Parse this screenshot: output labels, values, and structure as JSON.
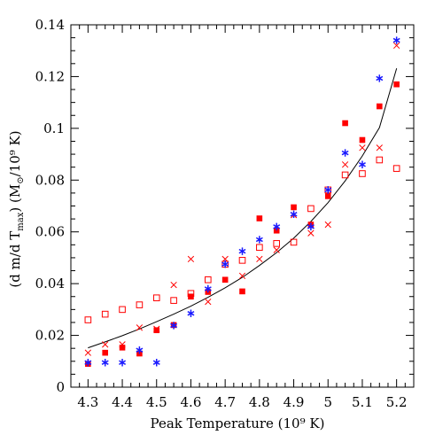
{
  "chart_data": {
    "type": "scatter",
    "xlabel": "Peak Temperature (10⁹ K)",
    "ylabel": {
      "prefix": "(d m/d T",
      "sub": "max",
      "mid": ") (M",
      "sub2": "⊙",
      "suffix": "/10⁹ K)"
    },
    "xlim": [
      4.25,
      5.25
    ],
    "ylim": [
      0,
      0.14
    ],
    "x_ticks": [
      4.3,
      4.4,
      4.5,
      4.6,
      4.7,
      4.8,
      4.9,
      5,
      5.1,
      5.2
    ],
    "x_tick_labels": [
      "4.3",
      "4.4",
      "4.5",
      "4.6",
      "4.7",
      "4.8",
      "4.9",
      "5",
      "5.1",
      "5.2"
    ],
    "y_ticks": [
      0,
      0.02,
      0.04,
      0.06,
      0.08,
      0.1,
      0.12,
      0.14
    ],
    "y_tick_labels": [
      "0",
      "0.02",
      "0.04",
      "0.06",
      "0.08",
      "0.1",
      "0.12",
      "0.14"
    ],
    "series": [
      {
        "marker": "filled-square",
        "color": "#ff0000",
        "points": [
          [
            4.3,
            0.009
          ],
          [
            4.35,
            0.0133
          ],
          [
            4.4,
            0.0153
          ],
          [
            4.45,
            0.013
          ],
          [
            4.5,
            0.022
          ],
          [
            4.55,
            0.024
          ],
          [
            4.6,
            0.035
          ],
          [
            4.65,
            0.0368
          ],
          [
            4.7,
            0.0415
          ],
          [
            4.75,
            0.037
          ],
          [
            4.8,
            0.0652
          ],
          [
            4.85,
            0.0605
          ],
          [
            4.9,
            0.0695
          ],
          [
            4.95,
            0.0628
          ],
          [
            5.0,
            0.0738
          ],
          [
            5.05,
            0.102
          ],
          [
            5.1,
            0.0955
          ],
          [
            5.15,
            0.1085
          ],
          [
            5.2,
            0.117
          ]
        ]
      },
      {
        "marker": "open-square",
        "color": "#ff0000",
        "points": [
          [
            4.3,
            0.026
          ],
          [
            4.35,
            0.0282
          ],
          [
            4.4,
            0.03
          ],
          [
            4.45,
            0.0318
          ],
          [
            4.5,
            0.0345
          ],
          [
            4.55,
            0.0335
          ],
          [
            4.6,
            0.0362
          ],
          [
            4.65,
            0.0415
          ],
          [
            4.7,
            0.0475
          ],
          [
            4.75,
            0.049
          ],
          [
            4.8,
            0.054
          ],
          [
            4.85,
            0.0555
          ],
          [
            4.9,
            0.056
          ],
          [
            4.95,
            0.069
          ],
          [
            5.0,
            0.0762
          ],
          [
            5.05,
            0.082
          ],
          [
            5.1,
            0.0825
          ],
          [
            5.15,
            0.0878
          ],
          [
            5.2,
            0.0845
          ]
        ]
      },
      {
        "marker": "cross",
        "color": "#ff0000",
        "points": [
          [
            4.3,
            0.0133
          ],
          [
            4.35,
            0.0165
          ],
          [
            4.4,
            0.0165
          ],
          [
            4.45,
            0.023
          ],
          [
            4.5,
            0.0225
          ],
          [
            4.55,
            0.0395
          ],
          [
            4.6,
            0.0495
          ],
          [
            4.65,
            0.033
          ],
          [
            4.7,
            0.0495
          ],
          [
            4.75,
            0.043
          ],
          [
            4.8,
            0.0495
          ],
          [
            4.85,
            0.053
          ],
          [
            4.9,
            0.0665
          ],
          [
            4.95,
            0.0595
          ],
          [
            5.0,
            0.0628
          ],
          [
            5.05,
            0.086
          ],
          [
            5.1,
            0.0925
          ],
          [
            5.15,
            0.0925
          ],
          [
            5.2,
            0.132
          ]
        ]
      },
      {
        "marker": "asterisk",
        "color": "#1a1aff",
        "points": [
          [
            4.3,
            0.0095
          ],
          [
            4.35,
            0.0095
          ],
          [
            4.4,
            0.0095
          ],
          [
            4.45,
            0.0143
          ],
          [
            4.5,
            0.0095
          ],
          [
            4.55,
            0.0238
          ],
          [
            4.6,
            0.0285
          ],
          [
            4.65,
            0.038
          ],
          [
            4.7,
            0.0475
          ],
          [
            4.75,
            0.0525
          ],
          [
            4.8,
            0.057
          ],
          [
            4.85,
            0.062
          ],
          [
            4.9,
            0.0668
          ],
          [
            4.95,
            0.062
          ],
          [
            5.0,
            0.0762
          ],
          [
            5.05,
            0.0905
          ],
          [
            5.1,
            0.086
          ],
          [
            5.15,
            0.1193
          ],
          [
            5.2,
            0.134
          ]
        ]
      }
    ],
    "fit_curve": {
      "color": "#000000",
      "points": [
        [
          4.3,
          0.0152
        ],
        [
          4.35,
          0.0175
        ],
        [
          4.4,
          0.0199
        ],
        [
          4.45,
          0.0225
        ],
        [
          4.5,
          0.0253
        ],
        [
          4.55,
          0.0282
        ],
        [
          4.6,
          0.0313
        ],
        [
          4.65,
          0.0347
        ],
        [
          4.7,
          0.0384
        ],
        [
          4.75,
          0.0424
        ],
        [
          4.8,
          0.047
        ],
        [
          4.85,
          0.052
        ],
        [
          4.9,
          0.0576
        ],
        [
          4.95,
          0.064
        ],
        [
          5.0,
          0.0713
        ],
        [
          5.05,
          0.0797
        ],
        [
          5.1,
          0.0893
        ],
        [
          5.15,
          0.1003
        ],
        [
          5.2,
          0.1232
        ]
      ]
    }
  }
}
